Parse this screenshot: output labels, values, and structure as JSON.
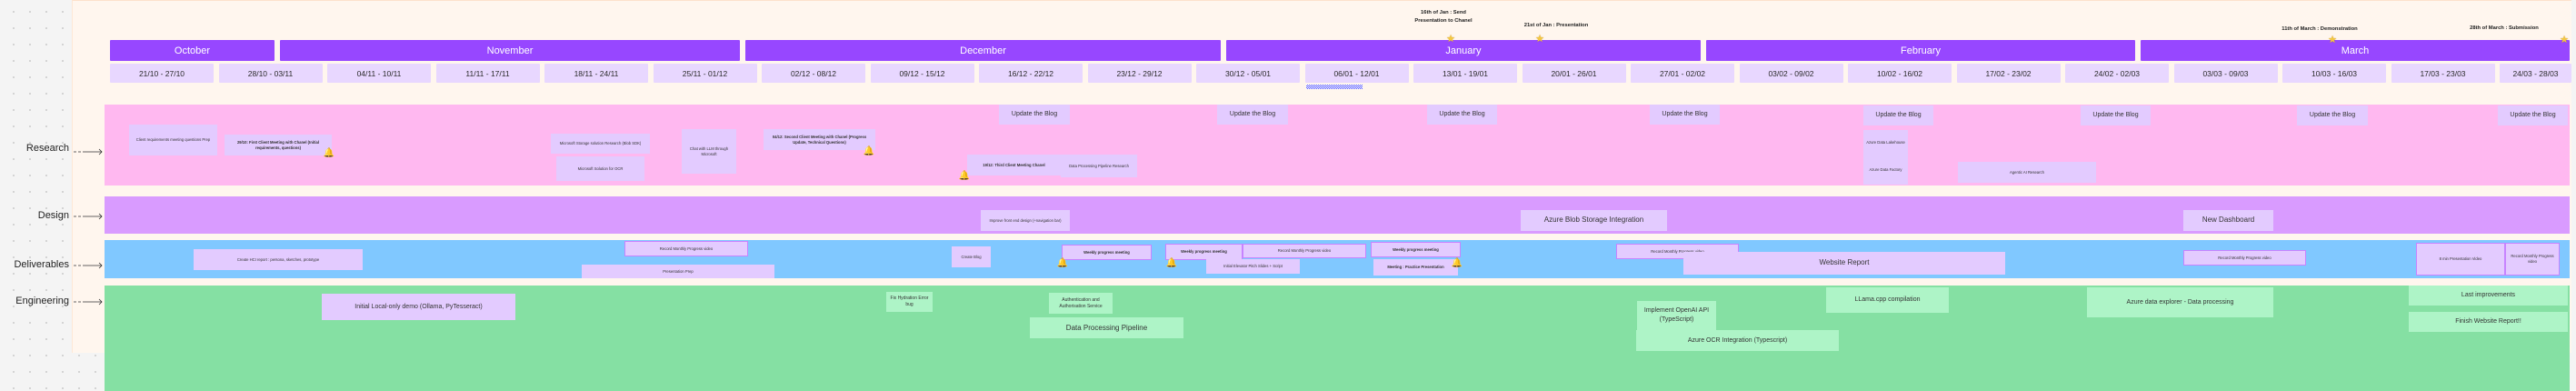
{
  "months": [
    "October",
    "November",
    "December",
    "January",
    "February",
    "March"
  ],
  "weeks": [
    "21/10 - 27/10",
    "28/10 - 03/11",
    "04/11 - 10/11",
    "11/11 - 17/11",
    "18/11 - 24/11",
    "25/11 - 01/12",
    "02/12 - 08/12",
    "09/12 - 15/12",
    "16/12 - 22/12",
    "23/12 - 29/12",
    "30/12 - 05/01",
    "06/01 - 12/01",
    "13/01 - 19/01",
    "20/01 - 26/01",
    "27/01 - 02/02",
    "03/02 - 09/02",
    "10/02 - 16/02",
    "17/02 - 23/02",
    "24/02 - 02/03",
    "03/03 - 09/03",
    "10/03 - 16/03",
    "17/03 - 23/03",
    "24/03 - 28/03"
  ],
  "milestones": [
    {
      "line1": "16th of Jan : Send",
      "line2": "Presentation to Chanel"
    },
    {
      "line1": "21st of Jan : Presentation",
      "line2": ""
    },
    {
      "line1": "11th of March : Demonstration",
      "line2": ""
    },
    {
      "line1": "28th of March : Submission",
      "line2": ""
    }
  ],
  "rows": {
    "research": {
      "label": "Research",
      "items": [
        "Client requirements meeting questions Prep",
        "29/10: First Client Meeting with Chanel (Initial requirements, questions)",
        "Microsoft Storage solution Research (Blob SDK)",
        "Microsoft Solution for OCR",
        "Chat with LLM through Microsoft",
        "04/12: Second Client Meeting with Chanel (Progress Update, Technical Questions)",
        "19/12: Third Client Meeting Chanel",
        "Data Processing Pipeline Research",
        "Azure Data Lakehouse",
        "Azure Data Factory",
        "Agentic AI Research"
      ],
      "blog_label": "Update the Blog"
    },
    "design": {
      "label": "Design",
      "items": [
        "Improve front end design (+navigation bar)",
        "Azure Blob Storage Integration",
        "New Dashboard"
      ]
    },
    "deliverables": {
      "label": "Deliverables",
      "items": [
        "Create HCI report : persona, sketches, prototype",
        "Record Monthly Progress video",
        "Presentation Prep",
        "Create Blog",
        "Weekly progress meeting",
        "Weekly progress meeting",
        "Record Monthly Progress video",
        "Initial Elevator Pitch Slides + Script",
        "Weekly progress meeting",
        "Meeting : Practice Presentation",
        "Record Monthly Progress video",
        "Website Report",
        "Record Monthly Progress video",
        "8 min Presentation Video",
        "Record Monthly Progress video"
      ]
    },
    "engineering": {
      "label": "Engineering",
      "items": [
        "Initial Local-only demo (Ollama, PyTesseract)",
        "Fix Hydration Error bug",
        "Authentication and Authorisation Service",
        "Data Processing Pipeline",
        "Implement OpenAI API (TypeScript)",
        "Azure OCR Integration (Typescript)",
        "LLama.cpp compilation",
        "Azure data explorer - Data processing",
        "Last improvements",
        "Finish Website Report!!"
      ]
    }
  },
  "colors": {
    "month": "#9747ff",
    "week": "#e8d7ff",
    "research": "#ffb8f0",
    "design": "#d99bff",
    "deliverables": "#80c8ff",
    "engineering": "#85e0a3",
    "sticky": "#e3cbff",
    "eng_sticky": "#aef4c7"
  },
  "icons": {
    "milestone": "star-icon",
    "meeting": "bell-icon",
    "arrow": "arrow-right-icon"
  }
}
